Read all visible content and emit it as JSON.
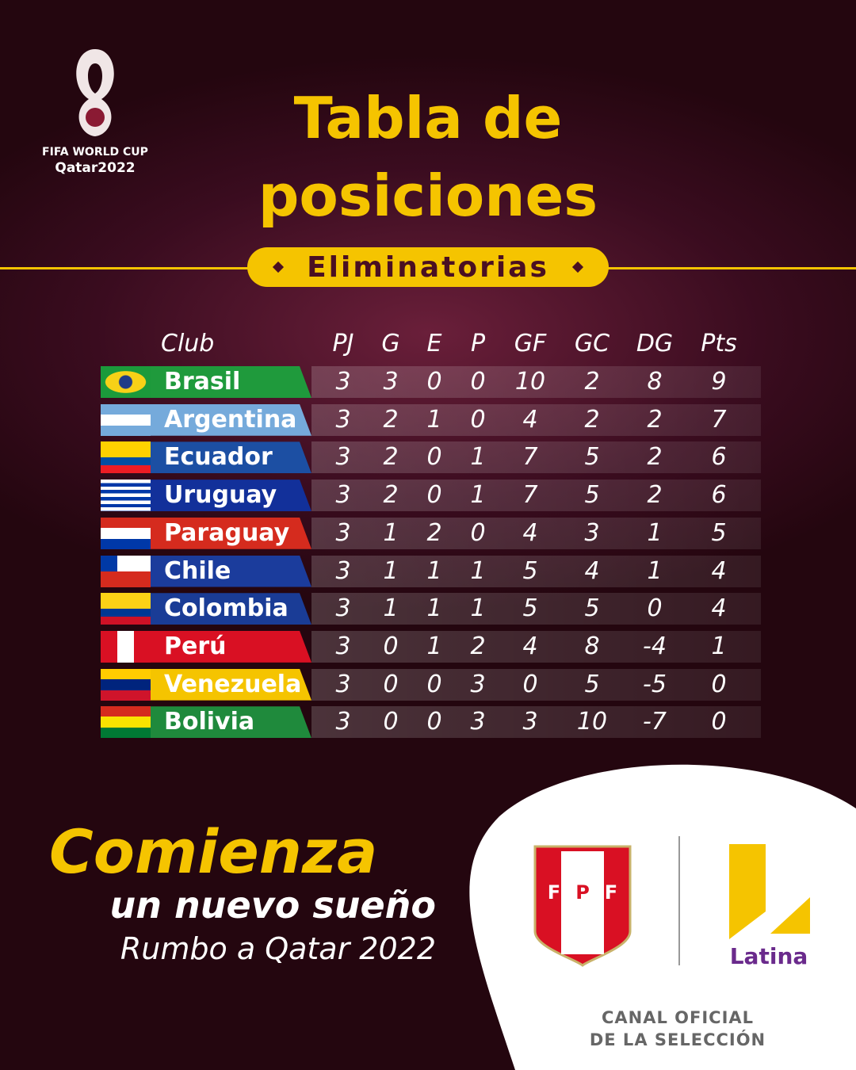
{
  "logo": {
    "line1": "FIFA WORLD CUP",
    "line2": "Qatar2022"
  },
  "title": "Tabla de posiciones",
  "badge": "Eliminatorias",
  "table": {
    "headers": [
      "Club",
      "PJ",
      "G",
      "E",
      "P",
      "GF",
      "GC",
      "DG",
      "Pts"
    ],
    "rows": [
      [
        "Brasil",
        3,
        3,
        0,
        0,
        10,
        2,
        8,
        9
      ],
      [
        "Argentina",
        3,
        2,
        1,
        0,
        4,
        2,
        2,
        7
      ],
      [
        "Ecuador",
        3,
        2,
        0,
        1,
        7,
        5,
        2,
        6
      ],
      [
        "Uruguay",
        3,
        2,
        0,
        1,
        7,
        5,
        2,
        6
      ],
      [
        "Paraguay",
        3,
        1,
        2,
        0,
        4,
        3,
        1,
        5
      ],
      [
        "Chile",
        3,
        1,
        1,
        1,
        5,
        4,
        1,
        4
      ],
      [
        "Colombia",
        3,
        1,
        1,
        1,
        5,
        5,
        0,
        4
      ],
      [
        "Perú",
        3,
        0,
        1,
        2,
        4,
        8,
        -4,
        1
      ],
      [
        "Venezuela",
        3,
        0,
        0,
        3,
        0,
        5,
        -5,
        0
      ],
      [
        "Bolivia",
        3,
        0,
        0,
        3,
        3,
        10,
        -7,
        0
      ]
    ]
  },
  "tagline": {
    "line1": "Comienza",
    "line2": "un nuevo sueño",
    "line3": "Rumbo a Qatar 2022"
  },
  "fpf": [
    "F",
    "P",
    "F"
  ],
  "brand": "Latina",
  "footer": {
    "line1": "CANAL OFICIAL",
    "line2": "DE LA SELECCIÓN"
  }
}
